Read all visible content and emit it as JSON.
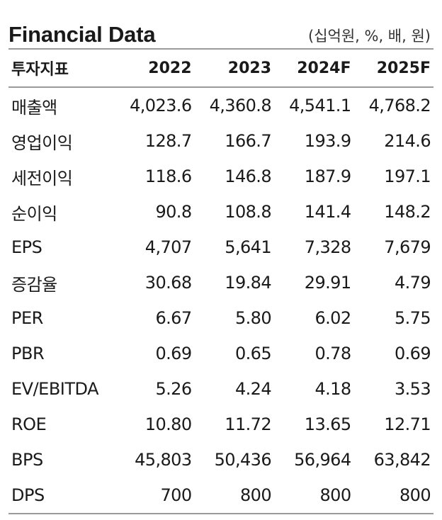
{
  "title": "Financial Data",
  "unit": "(십억원, %, 배, 원)",
  "columns": [
    "투자지표",
    "2022",
    "2023",
    "2024F",
    "2025F"
  ],
  "rows": [
    {
      "label": "매출액",
      "values": [
        "4,023.6",
        "4,360.8",
        "4,541.1",
        "4,768.2"
      ]
    },
    {
      "label": "영업이익",
      "values": [
        "128.7",
        "166.7",
        "193.9",
        "214.6"
      ]
    },
    {
      "label": "세전이익",
      "values": [
        "118.6",
        "146.8",
        "187.9",
        "197.1"
      ]
    },
    {
      "label": "순이익",
      "values": [
        "90.8",
        "108.8",
        "141.4",
        "148.2"
      ]
    },
    {
      "label": "EPS",
      "values": [
        "4,707",
        "5,641",
        "7,328",
        "7,679"
      ]
    },
    {
      "label": "증감율",
      "values": [
        "30.68",
        "19.84",
        "29.91",
        "4.79"
      ]
    },
    {
      "label": "PER",
      "values": [
        "6.67",
        "5.80",
        "6.02",
        "5.75"
      ]
    },
    {
      "label": "PBR",
      "values": [
        "0.69",
        "0.65",
        "0.78",
        "0.69"
      ]
    },
    {
      "label": "EV/EBITDA",
      "values": [
        "5.26",
        "4.24",
        "4.18",
        "3.53"
      ]
    },
    {
      "label": "ROE",
      "values": [
        "10.80",
        "11.72",
        "13.65",
        "12.71"
      ]
    },
    {
      "label": "BPS",
      "values": [
        "45,803",
        "50,436",
        "56,964",
        "63,842"
      ]
    },
    {
      "label": "DPS",
      "values": [
        "700",
        "800",
        "800",
        "800"
      ]
    }
  ]
}
